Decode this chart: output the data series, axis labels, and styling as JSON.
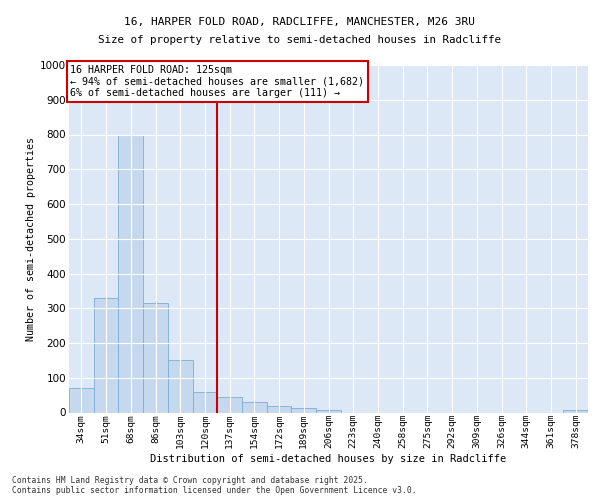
{
  "title_line1": "16, HARPER FOLD ROAD, RADCLIFFE, MANCHESTER, M26 3RU",
  "title_line2": "Size of property relative to semi-detached houses in Radcliffe",
  "xlabel": "Distribution of semi-detached houses by size in Radcliffe",
  "ylabel": "Number of semi-detached properties",
  "categories": [
    "34sqm",
    "51sqm",
    "68sqm",
    "86sqm",
    "103sqm",
    "120sqm",
    "137sqm",
    "154sqm",
    "172sqm",
    "189sqm",
    "206sqm",
    "223sqm",
    "240sqm",
    "258sqm",
    "275sqm",
    "292sqm",
    "309sqm",
    "326sqm",
    "344sqm",
    "361sqm",
    "378sqm"
  ],
  "values": [
    70,
    330,
    800,
    315,
    150,
    60,
    45,
    30,
    20,
    12,
    8,
    0,
    0,
    0,
    0,
    0,
    0,
    0,
    0,
    0,
    8
  ],
  "bar_color": "#c5d8ee",
  "bar_edge_color": "#7aaed6",
  "property_line_idx": 6,
  "property_line_color": "#cc0000",
  "annotation_text": "16 HARPER FOLD ROAD: 125sqm\n← 94% of semi-detached houses are smaller (1,682)\n6% of semi-detached houses are larger (111) →",
  "annotation_box_edge_color": "#cc0000",
  "ylim": [
    0,
    1000
  ],
  "yticks": [
    0,
    100,
    200,
    300,
    400,
    500,
    600,
    700,
    800,
    900,
    1000
  ],
  "footer_line1": "Contains HM Land Registry data © Crown copyright and database right 2025.",
  "footer_line2": "Contains public sector information licensed under the Open Government Licence v3.0.",
  "plot_bg_color": "#dce8f5"
}
